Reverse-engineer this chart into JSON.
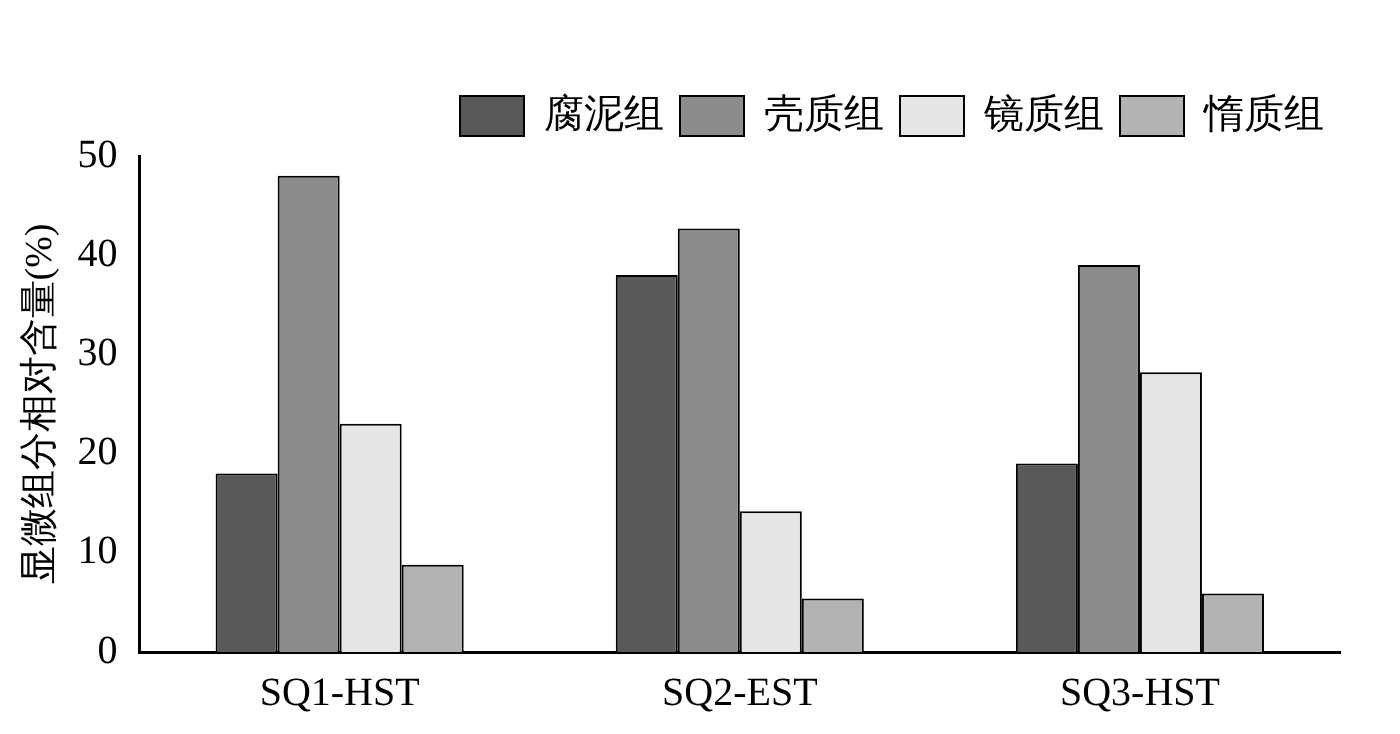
{
  "chart_data": {
    "type": "bar",
    "ylabel": "显微组分相对含量(%)",
    "categories": [
      "SQ1-HST",
      "SQ2-EST",
      "SQ3-HST"
    ],
    "series": [
      {
        "name": "腐泥组",
        "color": "#595959",
        "values": [
          18,
          38,
          19
        ]
      },
      {
        "name": "壳质组",
        "color": "#8c8c8c",
        "values": [
          48,
          42.7,
          39
        ]
      },
      {
        "name": "镜质组",
        "color": "#e6e6e6",
        "values": [
          23,
          14.2,
          28.2
        ]
      },
      {
        "name": "惰质组",
        "color": "#b3b3b3",
        "values": [
          8.8,
          5.4,
          5.9
        ]
      }
    ],
    "ylim": [
      0,
      50
    ],
    "yticks": [
      0,
      10,
      20,
      30,
      40,
      50
    ],
    "grid": false,
    "legend": "top right"
  }
}
